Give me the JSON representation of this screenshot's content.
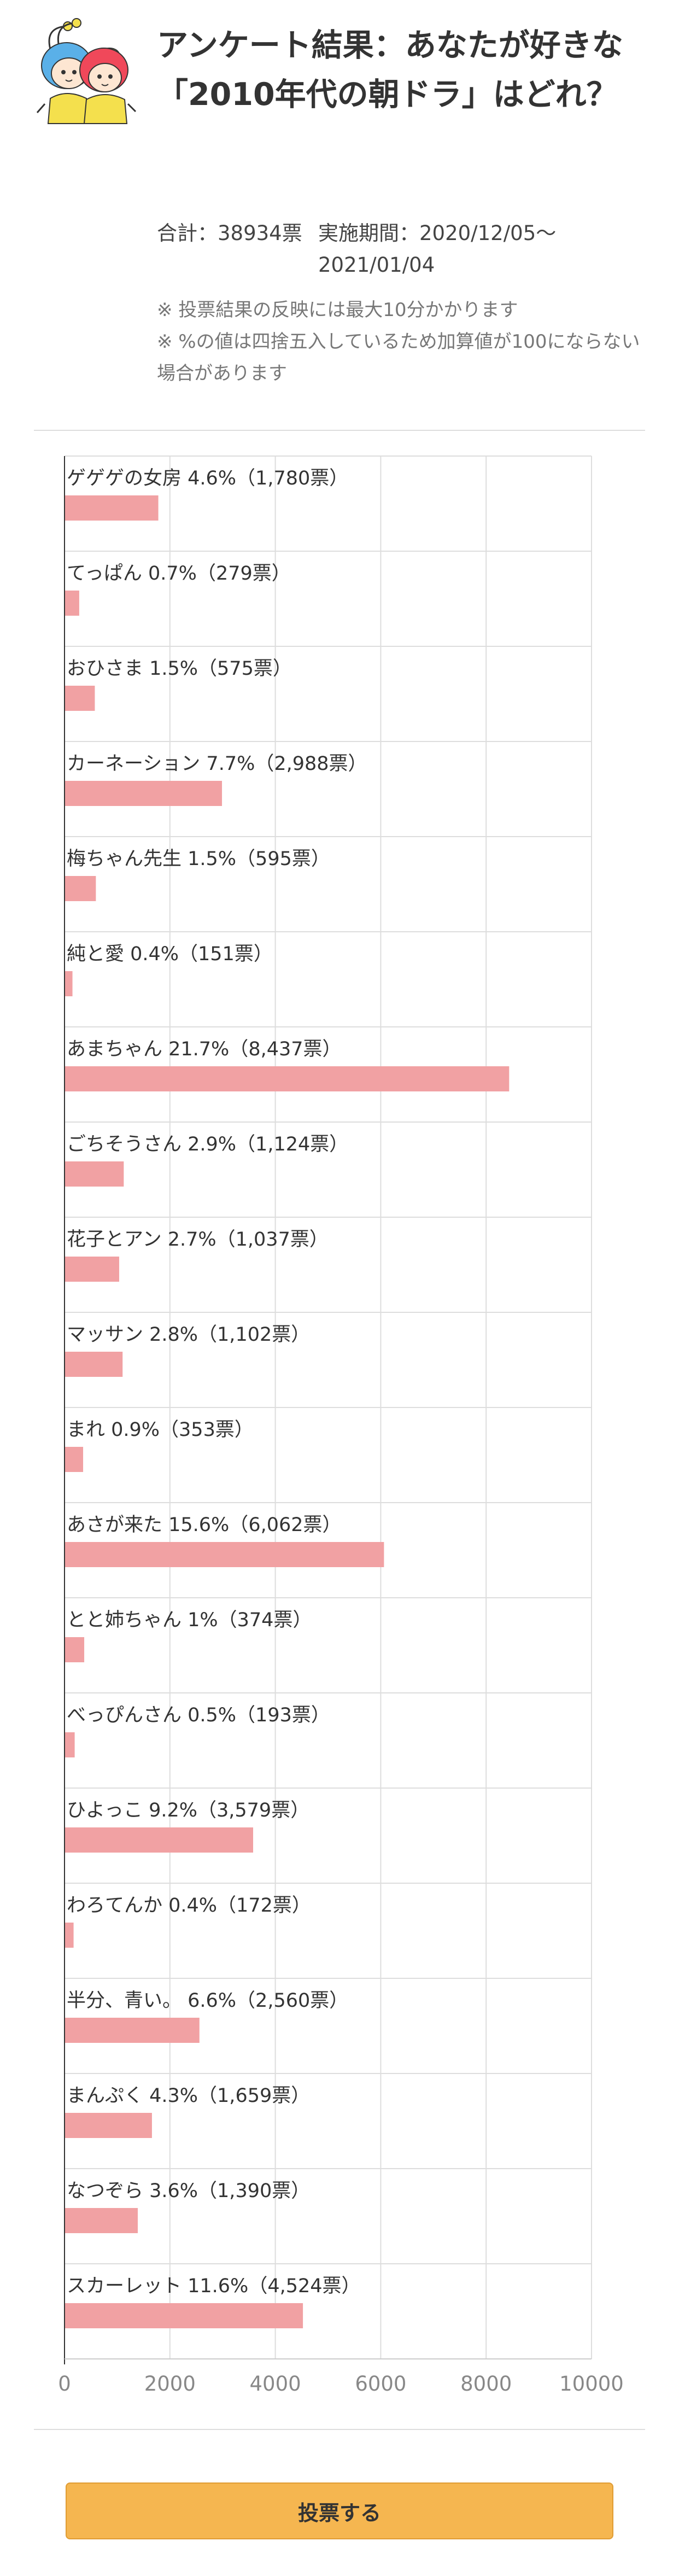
{
  "header": {
    "mascot_icon": "twin-mascot-icon",
    "title": "アンケート結果：あなたが好きな「2010年代の朝ドラ」はどれ？",
    "total": "合計：38934票",
    "period": "実施期間：2020/12/05〜2021/01/04",
    "notes": [
      "※ 投票結果の反映には最大10分かかります",
      "※ %の値は四捨五入しているため加算値が100にならない場合があります"
    ]
  },
  "chart_data": {
    "type": "bar",
    "orientation": "horizontal",
    "categories": [
      "ゲゲゲの女房 4.6%（1,780票）",
      "てっぱん 0.7%（279票）",
      "おひさま 1.5%（575票）",
      "カーネーション 7.7%（2,988票）",
      "梅ちゃん先生 1.5%（595票）",
      "純と愛 0.4%（151票）",
      "あまちゃん 21.7%（8,437票）",
      "ごちそうさん 2.9%（1,124票）",
      "花子とアン 2.7%（1,037票）",
      "マッサン 2.8%（1,102票）",
      "まれ 0.9%（353票）",
      "あさが来た 15.6%（6,062票）",
      "とと姉ちゃん 1%（374票）",
      "べっぴんさん 0.5%（193票）",
      "ひよっこ 9.2%（3,579票）",
      "わろてんか 0.4%（172票）",
      "半分、青い。 6.6%（2,560票）",
      "まんぷく 4.3%（1,659票）",
      "なつぞら 3.6%（1,390票）",
      "スカーレット 11.6%（4,524票）"
    ],
    "values": [
      1780,
      279,
      575,
      2988,
      595,
      151,
      8437,
      1124,
      1037,
      1102,
      353,
      6062,
      374,
      193,
      3579,
      172,
      2560,
      1659,
      1390,
      4524
    ],
    "xlim": [
      0,
      10000
    ],
    "xticks": [
      "0",
      "2000",
      "4000",
      "6000",
      "8000",
      "10000"
    ],
    "grid": true,
    "bar_color": "#f1a1a3",
    "grid_color": "#dddddd"
  },
  "button": {
    "label": "投票する",
    "color": "#f5b650"
  }
}
